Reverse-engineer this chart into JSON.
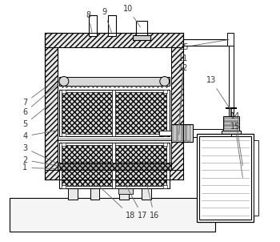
{
  "bg_color": "#ffffff",
  "lc": "#000000",
  "gray1": "#e8e8e8",
  "gray2": "#d0d0d0",
  "gray3": "#c0c0c0",
  "label_color": "#333333"
}
